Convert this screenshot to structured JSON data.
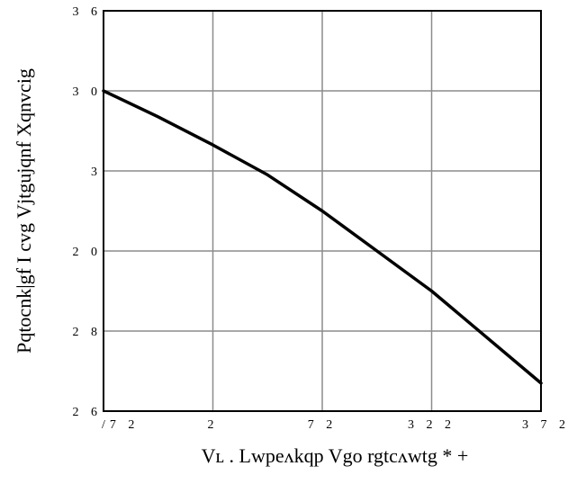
{
  "chart_data": {
    "type": "line",
    "title": "",
    "xlabel": "Vʟ . Lwpeʌkqp Vgo rgtcʌwtg *    +",
    "ylabel": "Pqtocnk|gf  I cvg  Vjtgujqnf  Xqnvcig",
    "x_tick_labels": [
      "/7 2",
      "2",
      "7 2",
      "3 2 2",
      "3 7 2"
    ],
    "y_tick_labels": [
      "2 6",
      "2 8",
      "2 0",
      "3",
      "3 0",
      "3 6"
    ],
    "xlim": [
      -50,
      150
    ],
    "ylim": [
      0.4,
      1.4
    ],
    "grid": true,
    "series": [
      {
        "x": [
          -50,
          -25,
          0,
          25,
          50,
          75,
          100,
          125,
          150
        ],
        "y": [
          1.2,
          1.135,
          1.065,
          0.99,
          0.9,
          0.8,
          0.7,
          0.585,
          0.47
        ]
      }
    ]
  }
}
